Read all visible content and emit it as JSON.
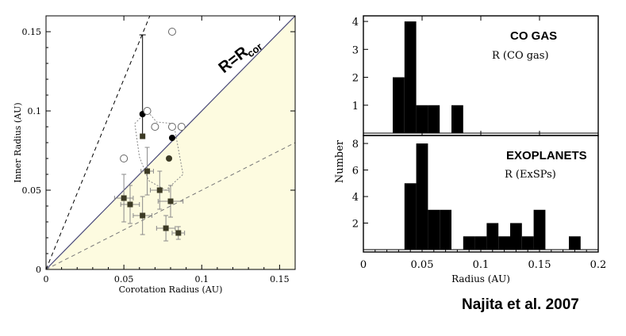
{
  "credit": "Najita et al. 2007",
  "colors": {
    "shade": "#fdfbe0",
    "bar": "#000000",
    "marker": "#3c3a24",
    "errbar": "#8a8a8a",
    "solid_line": "#4a4a7a"
  },
  "chart_data": [
    {
      "type": "scatter",
      "xlabel": "Corotation Radius (AU)",
      "ylabel": "Inner Radius (AU)",
      "xlim": [
        0,
        0.16
      ],
      "ylim": [
        0,
        0.16
      ],
      "xticks": [
        0,
        0.05,
        0.1,
        0.15
      ],
      "xtick_labels": [
        "0",
        "0.05",
        "0.1",
        "0.15"
      ],
      "yticks": [
        0,
        0.05,
        0.1,
        0.15
      ],
      "ytick_labels": [
        "0",
        "0.05",
        "0.1",
        "0.15"
      ],
      "line_label_main": "R=R",
      "line_label_sub": "cor",
      "shaded_region": "below R=Rcor",
      "reference_lines": [
        {
          "style": "solid",
          "slope": 1
        },
        {
          "style": "dashed",
          "slope": 2.4
        },
        {
          "style": "dashed",
          "slope": 0.5
        }
      ],
      "open_circles": [
        [
          0.081,
          0.15
        ],
        [
          0.065,
          0.1
        ],
        [
          0.07,
          0.09
        ],
        [
          0.081,
          0.09
        ],
        [
          0.087,
          0.09
        ],
        [
          0.05,
          0.07
        ]
      ],
      "filled_circles": [
        {
          "x": 0.062,
          "y": 0.098,
          "yerr_hi": 0.05,
          "yerr_lo": 0.015
        },
        {
          "x": 0.081,
          "y": 0.083
        },
        {
          "x": 0.079,
          "y": 0.07,
          "gray": true
        }
      ],
      "squares": [
        {
          "x": 0.062,
          "y": 0.084,
          "yerr_hi": 0.0,
          "yerr_lo": 0.0
        },
        {
          "x": 0.065,
          "y": 0.062,
          "xerr": 0.004,
          "yerr": 0.015
        },
        {
          "x": 0.05,
          "y": 0.045,
          "xerr": 0.006,
          "yerr": 0.015
        },
        {
          "x": 0.054,
          "y": 0.041,
          "xerr": 0.006,
          "yerr": 0.012
        },
        {
          "x": 0.062,
          "y": 0.034,
          "xerr": 0.006,
          "yerr": 0.012
        },
        {
          "x": 0.073,
          "y": 0.05,
          "xerr": 0.006,
          "yerr": 0.012
        },
        {
          "x": 0.08,
          "y": 0.043,
          "xerr": 0.008,
          "yerr": 0.01
        },
        {
          "x": 0.077,
          "y": 0.026,
          "xerr": 0.006,
          "yerr": 0.008
        },
        {
          "x": 0.085,
          "y": 0.023,
          "xerr": 0.004,
          "yerr": 0.004
        }
      ],
      "dotted_outline": [
        [
          0.057,
          0.092
        ],
        [
          0.065,
          0.1
        ],
        [
          0.071,
          0.093
        ],
        [
          0.082,
          0.092
        ],
        [
          0.088,
          0.06
        ],
        [
          0.077,
          0.05
        ],
        [
          0.066,
          0.056
        ],
        [
          0.06,
          0.071
        ],
        [
          0.057,
          0.092
        ]
      ]
    },
    {
      "type": "bar",
      "panel_title": "CO GAS",
      "panel_label": "R (CO gas)",
      "ylim": [
        0,
        4.2
      ],
      "yticks": [
        1,
        2,
        3,
        4
      ],
      "ytick_labels": [
        "1",
        "2",
        "3",
        "4"
      ],
      "bin_width": 0.01,
      "bin_starts": [
        0.025,
        0.035,
        0.045,
        0.055,
        0.075
      ],
      "values": [
        2,
        4,
        1,
        1,
        1
      ]
    },
    {
      "type": "bar",
      "panel_title": "EXOPLANETS",
      "panel_label": "R (ExSPs)",
      "xlabel": "Radius (AU)",
      "ylim": [
        0,
        8.6
      ],
      "yticks": [
        2,
        4,
        6,
        8
      ],
      "ytick_labels": [
        "2",
        "4",
        "6",
        "8"
      ],
      "xlim": [
        0,
        0.2
      ],
      "xticks": [
        0,
        0.05,
        0.1,
        0.15,
        0.2
      ],
      "xtick_labels": [
        "0",
        "0.05",
        "0.1",
        "0.15",
        "0.2"
      ],
      "bin_width": 0.01,
      "bin_starts": [
        0.035,
        0.045,
        0.055,
        0.065,
        0.085,
        0.095,
        0.105,
        0.115,
        0.125,
        0.135,
        0.145,
        0.175
      ],
      "values": [
        5,
        8,
        3,
        3,
        1,
        1,
        2,
        1,
        2,
        1,
        3,
        1
      ]
    }
  ],
  "shared_ylabel": "Number"
}
